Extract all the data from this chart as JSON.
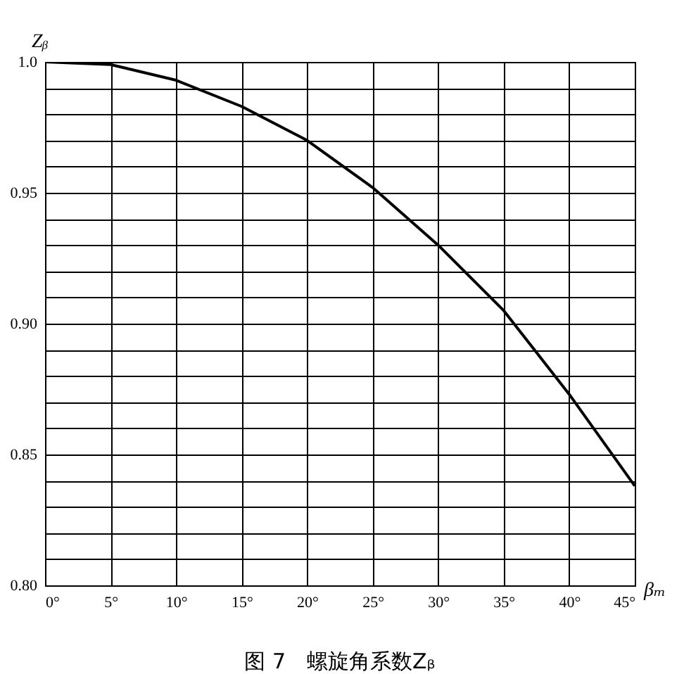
{
  "chart_data": {
    "type": "line",
    "title": "图 7　螺旋角系数Zᵦ",
    "xlabel": "βₘ",
    "ylabel": "Zᵦ",
    "x": [
      0,
      5,
      10,
      15,
      20,
      25,
      30,
      35,
      40,
      45
    ],
    "series": [
      {
        "color": "#000000",
        "values": [
          1.0,
          0.999,
          0.993,
          0.983,
          0.97,
          0.952,
          0.93,
          0.905,
          0.873,
          0.838
        ]
      }
    ],
    "xlim": [
      0,
      45
    ],
    "xticks": [
      {
        "value": 0,
        "label": "0°"
      },
      {
        "value": 5,
        "label": "5°"
      },
      {
        "value": 10,
        "label": "10°"
      },
      {
        "value": 15,
        "label": "15°"
      },
      {
        "value": 20,
        "label": "20°"
      },
      {
        "value": 25,
        "label": "25°"
      },
      {
        "value": 30,
        "label": "30°"
      },
      {
        "value": 35,
        "label": "35°"
      },
      {
        "value": 40,
        "label": "40°"
      },
      {
        "value": 45,
        "label": "45°"
      }
    ],
    "ylim": [
      0.8,
      1.0
    ],
    "yticks": [
      {
        "value": 0.8,
        "label": "0.80"
      },
      {
        "value": 0.81,
        "label": null
      },
      {
        "value": 0.82,
        "label": null
      },
      {
        "value": 0.83,
        "label": null
      },
      {
        "value": 0.84,
        "label": null
      },
      {
        "value": 0.85,
        "label": "0.85"
      },
      {
        "value": 0.86,
        "label": null
      },
      {
        "value": 0.87,
        "label": null
      },
      {
        "value": 0.88,
        "label": null
      },
      {
        "value": 0.89,
        "label": null
      },
      {
        "value": 0.9,
        "label": "0.90"
      },
      {
        "value": 0.91,
        "label": null
      },
      {
        "value": 0.92,
        "label": null
      },
      {
        "value": 0.93,
        "label": null
      },
      {
        "value": 0.94,
        "label": null
      },
      {
        "value": 0.95,
        "label": "0.95"
      },
      {
        "value": 0.96,
        "label": null
      },
      {
        "value": 0.97,
        "label": null
      },
      {
        "value": 0.98,
        "label": null
      },
      {
        "value": 0.99,
        "label": null
      },
      {
        "value": 1.0,
        "label": "1.0"
      }
    ],
    "grid": true,
    "marker": "none",
    "line_style": "solid"
  }
}
